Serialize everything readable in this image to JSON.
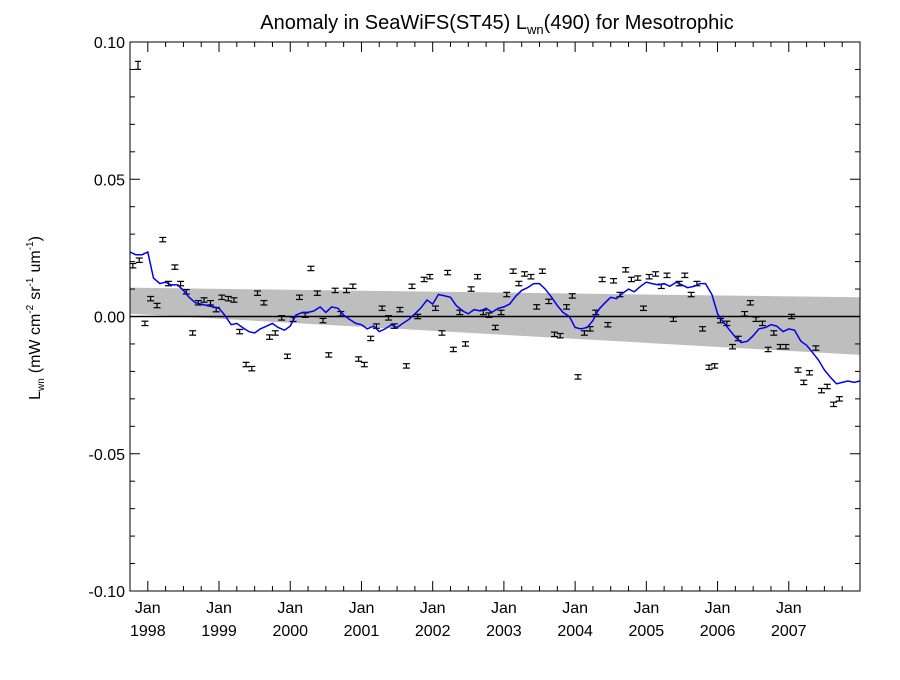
{
  "chart_data": {
    "type": "scatter",
    "title": {
      "prefix": "Anomaly in SeaWiFS(ST45) L",
      "sub": "wn",
      "suffix": "(490) for Mesotrophic"
    },
    "ylabel": {
      "main": "L",
      "main_sub": "wn",
      "unit_open": "(mW cm",
      "cm_exp": "-2",
      "sr": "sr",
      "sr_exp": "-1",
      "um": "um",
      "um_exp": "-1",
      "unit_close": ")"
    },
    "xlim": [
      1997.75,
      2008.0
    ],
    "ylim": [
      -0.1,
      0.1
    ],
    "y_ticks": [
      {
        "value": 0.1,
        "label": "0.10"
      },
      {
        "value": 0.05,
        "label": "0.05"
      },
      {
        "value": 0.0,
        "label": "0.00"
      },
      {
        "value": -0.05,
        "label": "-0.05"
      },
      {
        "value": -0.1,
        "label": "-0.10"
      }
    ],
    "x_ticks": [
      {
        "value": 1998.0,
        "month": "Jan",
        "year": "1998"
      },
      {
        "value": 1999.0,
        "month": "Jan",
        "year": "1999"
      },
      {
        "value": 2000.0,
        "month": "Jan",
        "year": "2000"
      },
      {
        "value": 2001.0,
        "month": "Jan",
        "year": "2001"
      },
      {
        "value": 2002.0,
        "month": "Jan",
        "year": "2002"
      },
      {
        "value": 2003.0,
        "month": "Jan",
        "year": "2003"
      },
      {
        "value": 2004.0,
        "month": "Jan",
        "year": "2004"
      },
      {
        "value": 2005.0,
        "month": "Jan",
        "year": "2005"
      },
      {
        "value": 2006.0,
        "month": "Jan",
        "year": "2006"
      },
      {
        "value": 2007.0,
        "month": "Jan",
        "year": "2007"
      }
    ],
    "error_bar_half": 0.0008,
    "monthly_anomaly": {
      "color": "#000000",
      "points": [
        [
          1997.79,
          0.0185
        ],
        [
          1997.88,
          0.0205
        ],
        [
          1997.96,
          -0.0025
        ],
        [
          1998.04,
          0.0065
        ],
        [
          1998.13,
          0.004
        ],
        [
          1998.21,
          0.028
        ],
        [
          1998.29,
          0.012
        ],
        [
          1998.38,
          0.018
        ],
        [
          1998.46,
          0.012
        ],
        [
          1998.54,
          0.009
        ],
        [
          1998.63,
          -0.006
        ],
        [
          1998.71,
          0.005
        ],
        [
          1998.79,
          0.006
        ],
        [
          1998.88,
          0.005
        ],
        [
          1998.96,
          0.0025
        ],
        [
          1999.04,
          0.007
        ],
        [
          1999.13,
          0.0065
        ],
        [
          1999.21,
          0.006
        ],
        [
          1999.29,
          -0.0055
        ],
        [
          1999.38,
          -0.0175
        ],
        [
          1999.46,
          -0.019
        ],
        [
          1999.54,
          0.0085
        ],
        [
          1999.63,
          0.005
        ],
        [
          1999.71,
          -0.0075
        ],
        [
          1999.79,
          -0.006
        ],
        [
          1999.88,
          -0.0005
        ],
        [
          1999.96,
          -0.0145
        ],
        [
          2000.04,
          -0.001
        ],
        [
          2000.13,
          0.007
        ],
        [
          2000.21,
          0.0005
        ],
        [
          2000.29,
          0.0175
        ],
        [
          2000.38,
          0.0085
        ],
        [
          2000.46,
          -0.0015
        ],
        [
          2000.54,
          -0.014
        ],
        [
          2000.63,
          0.0095
        ],
        [
          2000.71,
          0.001
        ],
        [
          2000.79,
          0.0095
        ],
        [
          2000.88,
          0.011
        ],
        [
          2000.96,
          -0.0155
        ],
        [
          2001.04,
          -0.0175
        ],
        [
          2001.13,
          -0.008
        ],
        [
          2001.21,
          -0.0035
        ],
        [
          2001.29,
          0.003
        ],
        [
          2001.38,
          -0.0005
        ],
        [
          2001.46,
          -0.0035
        ],
        [
          2001.54,
          0.0025
        ],
        [
          2001.63,
          -0.018
        ],
        [
          2001.71,
          0.011
        ],
        [
          2001.79,
          0.0
        ],
        [
          2001.88,
          0.0135
        ],
        [
          2001.96,
          0.0145
        ],
        [
          2002.04,
          0.003
        ],
        [
          2002.13,
          -0.006
        ],
        [
          2002.21,
          0.016
        ],
        [
          2002.29,
          -0.012
        ],
        [
          2002.38,
          0.0015
        ],
        [
          2002.46,
          -0.01
        ],
        [
          2002.54,
          0.01
        ],
        [
          2002.63,
          0.0145
        ],
        [
          2002.71,
          0.0015
        ],
        [
          2002.79,
          0.0005
        ],
        [
          2002.88,
          -0.004
        ],
        [
          2002.96,
          0.0015
        ],
        [
          2003.04,
          0.008
        ],
        [
          2003.13,
          0.0165
        ],
        [
          2003.21,
          0.012
        ],
        [
          2003.29,
          0.0155
        ],
        [
          2003.38,
          0.0145
        ],
        [
          2003.46,
          0.0035
        ],
        [
          2003.54,
          0.0165
        ],
        [
          2003.63,
          0.0055
        ],
        [
          2003.71,
          -0.0065
        ],
        [
          2003.79,
          -0.007
        ],
        [
          2003.88,
          0.0035
        ],
        [
          2003.96,
          0.0075
        ],
        [
          2004.04,
          -0.022
        ],
        [
          2004.13,
          -0.006
        ],
        [
          2004.21,
          -0.0045
        ],
        [
          2004.29,
          0.0015
        ],
        [
          2004.38,
          0.0135
        ],
        [
          2004.46,
          -0.003
        ],
        [
          2004.54,
          0.013
        ],
        [
          2004.63,
          0.008
        ],
        [
          2004.71,
          0.017
        ],
        [
          2004.79,
          0.0135
        ],
        [
          2004.88,
          0.014
        ],
        [
          2004.96,
          0.003
        ],
        [
          2005.04,
          0.0145
        ],
        [
          2005.13,
          0.0155
        ],
        [
          2005.21,
          0.011
        ],
        [
          2005.29,
          0.015
        ],
        [
          2005.38,
          -0.001
        ],
        [
          2005.46,
          0.012
        ],
        [
          2005.54,
          0.015
        ],
        [
          2005.63,
          0.008
        ],
        [
          2005.71,
          0.012
        ],
        [
          2005.79,
          -0.0045
        ],
        [
          2005.88,
          -0.0185
        ],
        [
          2005.96,
          -0.018
        ],
        [
          2006.04,
          -0.0015
        ],
        [
          2006.13,
          -0.0025
        ],
        [
          2006.21,
          -0.011
        ],
        [
          2006.29,
          -0.008
        ],
        [
          2006.38,
          0.001
        ],
        [
          2006.46,
          0.005
        ],
        [
          2006.54,
          -0.001
        ],
        [
          2006.63,
          -0.0025
        ],
        [
          2006.71,
          -0.012
        ],
        [
          2006.79,
          -0.006
        ],
        [
          2006.88,
          -0.011
        ],
        [
          2006.96,
          -0.011
        ],
        [
          2007.04,
          0.0
        ],
        [
          2007.13,
          -0.0195
        ],
        [
          2007.21,
          -0.024
        ],
        [
          2007.29,
          -0.0205
        ],
        [
          2007.38,
          -0.0115
        ],
        [
          2007.46,
          -0.027
        ],
        [
          2007.54,
          -0.0255
        ],
        [
          2007.63,
          -0.032
        ],
        [
          2007.71,
          -0.03
        ]
      ]
    },
    "running_mean": {
      "color": "#0000ee",
      "points": [
        [
          1997.75,
          0.0235
        ],
        [
          1997.83,
          0.0225
        ],
        [
          1997.92,
          0.0225
        ],
        [
          1998.0,
          0.0235
        ],
        [
          1998.08,
          0.014
        ],
        [
          1998.17,
          0.012
        ],
        [
          1998.25,
          0.0125
        ],
        [
          1998.33,
          0.0115
        ],
        [
          1998.42,
          0.0115
        ],
        [
          1998.5,
          0.0095
        ],
        [
          1998.58,
          0.007
        ],
        [
          1998.67,
          0.005
        ],
        [
          1998.75,
          0.0045
        ],
        [
          1998.83,
          0.004
        ],
        [
          1998.92,
          0.0035
        ],
        [
          1999.0,
          0.003
        ],
        [
          1999.08,
          0.0005
        ],
        [
          1999.17,
          -0.003
        ],
        [
          1999.25,
          -0.0025
        ],
        [
          1999.33,
          -0.004
        ],
        [
          1999.42,
          -0.0055
        ],
        [
          1999.5,
          -0.006
        ],
        [
          1999.58,
          -0.0045
        ],
        [
          1999.67,
          -0.0035
        ],
        [
          1999.75,
          -0.0025
        ],
        [
          1999.83,
          -0.004
        ],
        [
          1999.92,
          -0.005
        ],
        [
          2000.0,
          -0.0035
        ],
        [
          2000.08,
          0.0005
        ],
        [
          2000.17,
          0.0015
        ],
        [
          2000.25,
          0.0015
        ],
        [
          2000.33,
          0.002
        ],
        [
          2000.42,
          0.0035
        ],
        [
          2000.5,
          0.0015
        ],
        [
          2000.58,
          0.0035
        ],
        [
          2000.67,
          0.003
        ],
        [
          2000.75,
          0.0005
        ],
        [
          2000.83,
          -0.001
        ],
        [
          2000.92,
          -0.0025
        ],
        [
          2001.0,
          -0.003
        ],
        [
          2001.08,
          -0.0045
        ],
        [
          2001.17,
          -0.0035
        ],
        [
          2001.25,
          -0.0055
        ],
        [
          2001.33,
          -0.0045
        ],
        [
          2001.42,
          -0.003
        ],
        [
          2001.5,
          -0.004
        ],
        [
          2001.58,
          -0.0025
        ],
        [
          2001.67,
          -0.001
        ],
        [
          2001.75,
          0.001
        ],
        [
          2001.83,
          0.003
        ],
        [
          2001.92,
          0.006
        ],
        [
          2002.0,
          0.0045
        ],
        [
          2002.08,
          0.008
        ],
        [
          2002.17,
          0.0075
        ],
        [
          2002.25,
          0.007
        ],
        [
          2002.33,
          0.004
        ],
        [
          2002.42,
          0.002
        ],
        [
          2002.5,
          0.001
        ],
        [
          2002.58,
          0.0025
        ],
        [
          2002.67,
          0.002
        ],
        [
          2002.75,
          0.003
        ],
        [
          2002.83,
          0.0015
        ],
        [
          2002.92,
          0.003
        ],
        [
          2003.0,
          0.0035
        ],
        [
          2003.08,
          0.0045
        ],
        [
          2003.17,
          0.0075
        ],
        [
          2003.25,
          0.0095
        ],
        [
          2003.33,
          0.0105
        ],
        [
          2003.42,
          0.012
        ],
        [
          2003.5,
          0.012
        ],
        [
          2003.58,
          0.01
        ],
        [
          2003.67,
          0.007
        ],
        [
          2003.75,
          0.004
        ],
        [
          2003.83,
          0.0015
        ],
        [
          2003.92,
          0.0
        ],
        [
          2004.0,
          -0.004
        ],
        [
          2004.08,
          -0.0045
        ],
        [
          2004.17,
          -0.004
        ],
        [
          2004.25,
          -0.0015
        ],
        [
          2004.33,
          0.0025
        ],
        [
          2004.42,
          0.005
        ],
        [
          2004.5,
          0.007
        ],
        [
          2004.58,
          0.0065
        ],
        [
          2004.67,
          0.0085
        ],
        [
          2004.75,
          0.01
        ],
        [
          2004.83,
          0.009
        ],
        [
          2004.92,
          0.011
        ],
        [
          2005.0,
          0.0125
        ],
        [
          2005.08,
          0.012
        ],
        [
          2005.17,
          0.0115
        ],
        [
          2005.25,
          0.012
        ],
        [
          2005.33,
          0.011
        ],
        [
          2005.42,
          0.0125
        ],
        [
          2005.5,
          0.0115
        ],
        [
          2005.58,
          0.0105
        ],
        [
          2005.67,
          0.011
        ],
        [
          2005.75,
          0.012
        ],
        [
          2005.83,
          0.012
        ],
        [
          2005.92,
          0.008
        ],
        [
          2006.0,
          0.001
        ],
        [
          2006.08,
          -0.002
        ],
        [
          2006.17,
          -0.005
        ],
        [
          2006.25,
          -0.0075
        ],
        [
          2006.33,
          -0.0095
        ],
        [
          2006.42,
          -0.009
        ],
        [
          2006.5,
          -0.007
        ],
        [
          2006.58,
          -0.0045
        ],
        [
          2006.67,
          -0.004
        ],
        [
          2006.75,
          -0.003
        ],
        [
          2006.83,
          -0.0035
        ],
        [
          2006.92,
          -0.0055
        ],
        [
          2007.0,
          -0.0045
        ],
        [
          2007.08,
          -0.005
        ],
        [
          2007.17,
          -0.009
        ],
        [
          2007.25,
          -0.0105
        ],
        [
          2007.33,
          -0.013
        ],
        [
          2007.42,
          -0.016
        ],
        [
          2007.5,
          -0.0195
        ],
        [
          2007.58,
          -0.022
        ],
        [
          2007.67,
          -0.0245
        ],
        [
          2007.75,
          -0.024
        ],
        [
          2007.83,
          -0.0235
        ],
        [
          2007.92,
          -0.024
        ],
        [
          2008.0,
          -0.0235
        ]
      ]
    },
    "trend_band": {
      "color": "#bebebe",
      "x": [
        1997.75,
        2008.0
      ],
      "upper": [
        0.0105,
        0.007
      ],
      "lower": [
        0.001,
        -0.014
      ]
    },
    "zero_line": 0.0
  }
}
